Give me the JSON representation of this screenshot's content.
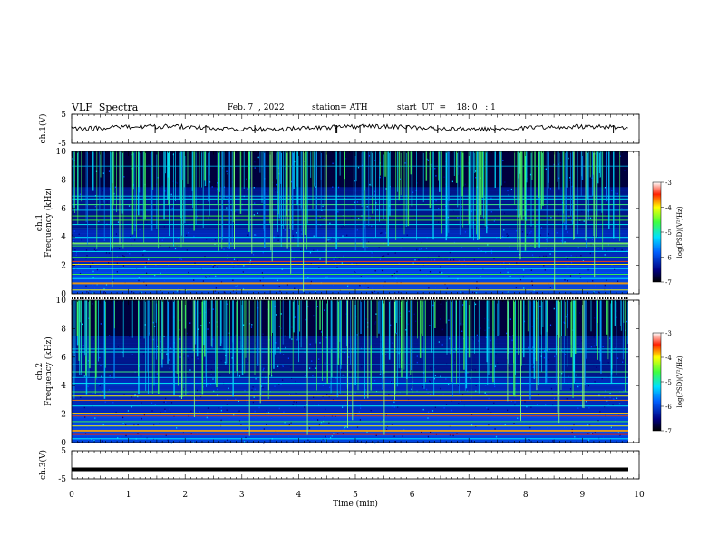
{
  "header": {
    "title": "VLF  Spectra",
    "date": "Feb. 7  , 2022",
    "station": "station= ATH",
    "start": "start  UT  =    18: 0   : 1"
  },
  "chart_data": [
    {
      "type": "line",
      "panel": "ch1-waveform",
      "ylabel": "ch.1(V)",
      "ylim": [
        -5,
        5
      ],
      "yticks": [
        "5",
        "-5"
      ],
      "x_range_min": [
        0,
        10
      ],
      "series": [
        {
          "values_description_level": 0.3
        }
      ]
    },
    {
      "type": "heatmap",
      "panel": "ch1-spectrogram",
      "ylabel": "ch.1\nFrequency  (kHz)",
      "ylim": [
        0,
        10
      ],
      "yticks": [
        "0",
        "2",
        "4",
        "6",
        "8",
        "10"
      ],
      "colorbar": {
        "label": "log(PSD)(V²/Hz)",
        "range": [
          -7,
          -3
        ],
        "ticks": [
          "-3",
          "-4",
          "-5",
          "-6",
          "-7"
        ]
      }
    },
    {
      "type": "heatmap",
      "panel": "ch2-spectrogram",
      "ylabel": "ch.2\nFrequency  (kHz)",
      "ylim": [
        0,
        10
      ],
      "yticks": [
        "0",
        "2",
        "4",
        "6",
        "8",
        "10"
      ],
      "colorbar": {
        "label": "log(PSD)(V²/Hz)",
        "range": [
          -7,
          -3
        ],
        "ticks": [
          "-3",
          "-4",
          "-5",
          "-6",
          "-7"
        ]
      }
    },
    {
      "type": "line",
      "panel": "ch3-waveform",
      "ylabel": "ch.3(V)",
      "ylim": [
        -5,
        5
      ],
      "yticks": [
        "5",
        "-5"
      ],
      "series": [
        {
          "values_description_level": -1.6
        }
      ]
    }
  ],
  "xaxis": {
    "label": "Time  (min)",
    "range": [
      0,
      10
    ],
    "ticks": [
      "0",
      "1",
      "2",
      "3",
      "4",
      "5",
      "6",
      "7",
      "8",
      "9",
      "10"
    ]
  },
  "colors": {
    "background": "#ffffff",
    "spectro_low": "#000080",
    "spectro_mid": "#00ffff",
    "spectro_high": "#ff0000"
  }
}
